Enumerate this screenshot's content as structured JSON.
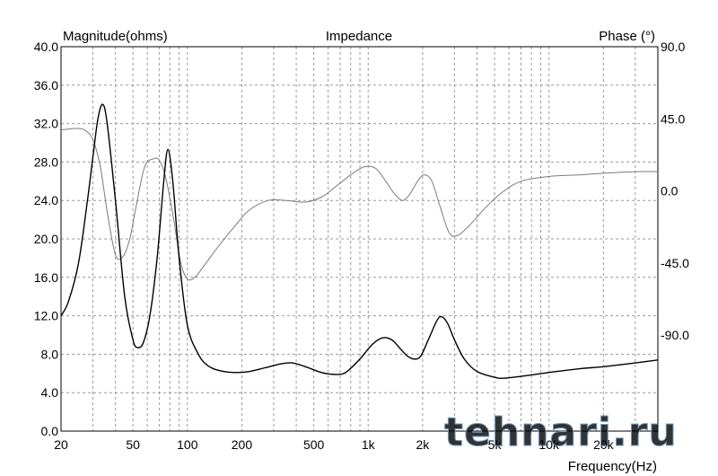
{
  "header": {
    "left_label": "Magnitude(ohms)",
    "title": "Impedance",
    "right_label": "Phase (°)"
  },
  "watermark": {
    "text": "tehnari.ru",
    "color": "#b9d4ea",
    "outline": "#6f9cc4"
  },
  "chart_data": {
    "type": "line",
    "title": "Impedance",
    "xlabel": "Frequency(Hz)",
    "ylabel": "Magnitude(ohms)",
    "y2label": "Phase (°)",
    "x_scale": "log",
    "xlim": [
      20,
      40000
    ],
    "ylim": [
      0,
      40
    ],
    "y2lim": [
      -150,
      90
    ],
    "grid": true,
    "x_major_ticks": [
      20,
      50,
      100,
      200,
      500,
      1000,
      2000,
      5000,
      10000,
      20000
    ],
    "x_tick_labels": [
      "20",
      "50",
      "100",
      "200",
      "500",
      "1k",
      "2k",
      "5k",
      "10k",
      "20k"
    ],
    "y_ticks": [
      0,
      4,
      8,
      12,
      16,
      20,
      24,
      28,
      32,
      36,
      40
    ],
    "y_tick_labels": [
      "0.0",
      "4.0",
      "8.0",
      "12.0",
      "16.0",
      "20.0",
      "24.0",
      "28.0",
      "32.0",
      "36.0",
      "40.0"
    ],
    "y2_ticks": [
      90,
      45,
      0,
      -45,
      -90
    ],
    "y2_tick_labels": [
      "90.0",
      "45.0",
      "0.0",
      "-45.0",
      "-90.0"
    ],
    "series": [
      {
        "name": "Magnitude",
        "axis": "left",
        "color": "#000000",
        "points": [
          [
            20,
            12.0
          ],
          [
            22,
            13.5
          ],
          [
            25,
            17.5
          ],
          [
            28,
            24
          ],
          [
            30,
            28.5
          ],
          [
            32,
            32.5
          ],
          [
            34,
            34.0
          ],
          [
            36,
            32
          ],
          [
            40,
            24
          ],
          [
            45,
            14
          ],
          [
            50,
            9.5
          ],
          [
            53,
            8.7
          ],
          [
            57,
            9.2
          ],
          [
            62,
            12
          ],
          [
            68,
            18
          ],
          [
            74,
            26
          ],
          [
            78,
            29.3
          ],
          [
            83,
            26
          ],
          [
            90,
            18
          ],
          [
            100,
            11
          ],
          [
            115,
            8
          ],
          [
            130,
            6.8
          ],
          [
            150,
            6.3
          ],
          [
            180,
            6.1
          ],
          [
            220,
            6.2
          ],
          [
            270,
            6.6
          ],
          [
            330,
            7.0
          ],
          [
            380,
            7.1
          ],
          [
            450,
            6.7
          ],
          [
            550,
            6.1
          ],
          [
            650,
            5.9
          ],
          [
            750,
            6.1
          ],
          [
            900,
            7.5
          ],
          [
            1050,
            9.0
          ],
          [
            1200,
            9.7
          ],
          [
            1350,
            9.5
          ],
          [
            1500,
            8.6
          ],
          [
            1650,
            7.8
          ],
          [
            1800,
            7.5
          ],
          [
            1950,
            7.8
          ],
          [
            2150,
            9.5
          ],
          [
            2400,
            11.5
          ],
          [
            2550,
            11.9
          ],
          [
            2750,
            11.2
          ],
          [
            3000,
            9.5
          ],
          [
            3400,
            7.5
          ],
          [
            4000,
            6.2
          ],
          [
            5000,
            5.6
          ],
          [
            5600,
            5.5
          ],
          [
            7000,
            5.7
          ],
          [
            10000,
            6.1
          ],
          [
            15000,
            6.5
          ],
          [
            20000,
            6.7
          ],
          [
            30000,
            7.1
          ],
          [
            40000,
            7.4
          ]
        ]
      },
      {
        "name": "Phase",
        "axis": "right",
        "color": "#7a7a7a",
        "points": [
          [
            20,
            38
          ],
          [
            24,
            39
          ],
          [
            27,
            38
          ],
          [
            30,
            32
          ],
          [
            33,
            15
          ],
          [
            36,
            -13
          ],
          [
            40,
            -40
          ],
          [
            44,
            -41
          ],
          [
            48,
            -30
          ],
          [
            52,
            -10
          ],
          [
            58,
            15
          ],
          [
            65,
            20
          ],
          [
            70,
            19
          ],
          [
            76,
            8
          ],
          [
            84,
            -18
          ],
          [
            92,
            -45
          ],
          [
            100,
            -55
          ],
          [
            110,
            -54
          ],
          [
            125,
            -46
          ],
          [
            150,
            -34
          ],
          [
            180,
            -23
          ],
          [
            220,
            -12
          ],
          [
            280,
            -6
          ],
          [
            350,
            -6
          ],
          [
            450,
            -7
          ],
          [
            550,
            -4
          ],
          [
            650,
            2
          ],
          [
            800,
            10
          ],
          [
            950,
            15
          ],
          [
            1100,
            14
          ],
          [
            1250,
            6
          ],
          [
            1400,
            -2
          ],
          [
            1550,
            -6
          ],
          [
            1700,
            -2
          ],
          [
            1900,
            7
          ],
          [
            2050,
            10
          ],
          [
            2250,
            6
          ],
          [
            2500,
            -10
          ],
          [
            2800,
            -26
          ],
          [
            3100,
            -28
          ],
          [
            3600,
            -22
          ],
          [
            4500,
            -10
          ],
          [
            5500,
            -1
          ],
          [
            7000,
            6
          ],
          [
            10000,
            9
          ],
          [
            15000,
            10
          ],
          [
            20000,
            11
          ],
          [
            30000,
            12
          ],
          [
            40000,
            12
          ]
        ]
      }
    ]
  }
}
